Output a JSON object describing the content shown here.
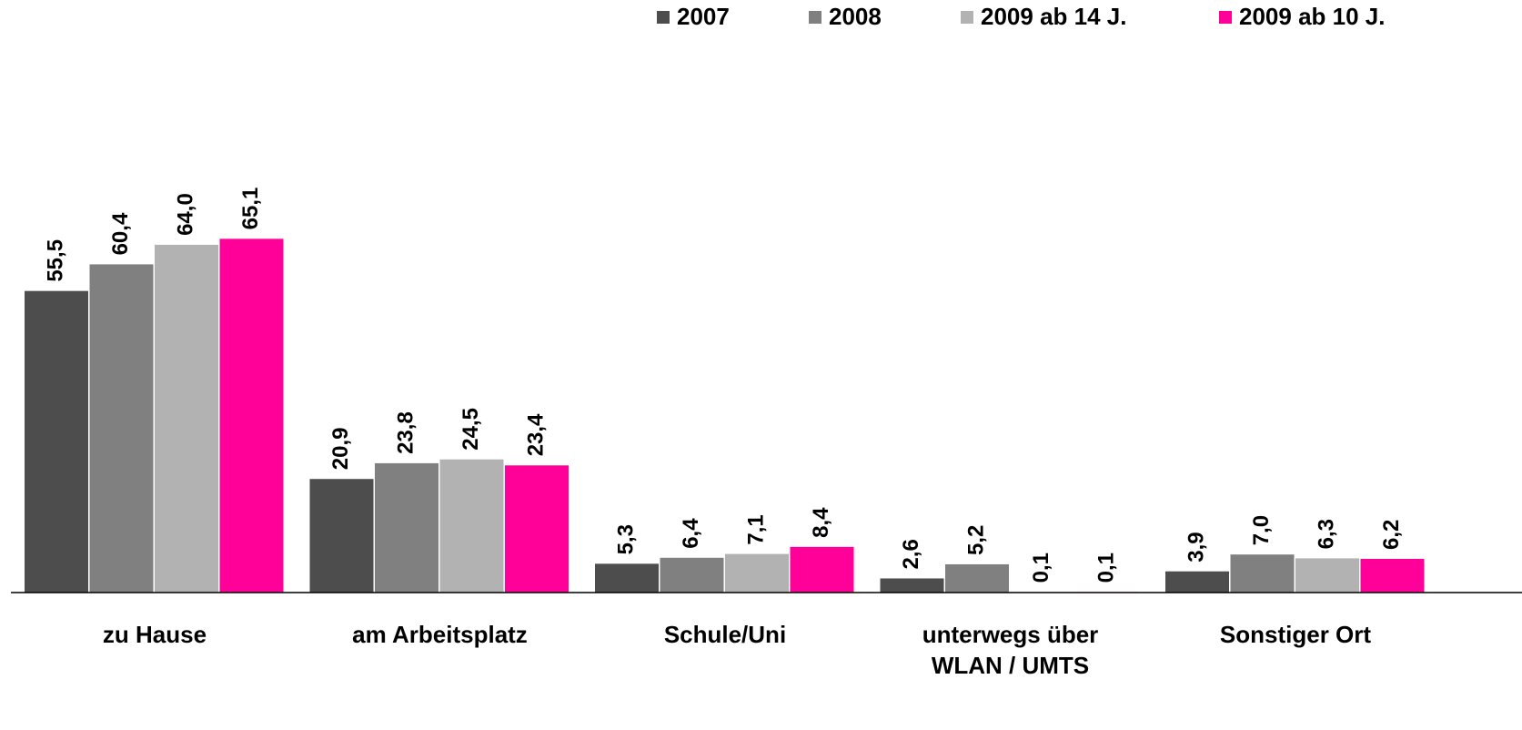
{
  "chart_data": {
    "type": "bar",
    "categories": [
      "zu Hause",
      "am Arbeitsplatz",
      "Schule/Uni",
      "unterwegs über\nWLAN / UMTS",
      "Sonstiger Ort"
    ],
    "series": [
      {
        "name": "2007",
        "color": "#4d4d4d",
        "values": [
          55.5,
          20.9,
          5.3,
          2.6,
          3.9
        ],
        "value_labels": [
          "55,5",
          "20,9",
          "5,3",
          "2,6",
          "3,9"
        ]
      },
      {
        "name": "2008",
        "color": "#808080",
        "values": [
          60.4,
          23.8,
          6.4,
          5.2,
          7.0
        ],
        "value_labels": [
          "60,4",
          "23,8",
          "6,4",
          "5,2",
          "7,0"
        ]
      },
      {
        "name": "2009 ab 14 J.",
        "color": "#b2b2b2",
        "values": [
          64.0,
          24.5,
          7.1,
          0.1,
          6.3
        ],
        "value_labels": [
          "64,0",
          "24,5",
          "7,1",
          "0,1",
          "6,3"
        ]
      },
      {
        "name": "2009 ab 10 J.",
        "color": "#ff0099",
        "values": [
          65.1,
          23.4,
          8.4,
          0.1,
          6.2
        ],
        "value_labels": [
          "65,1",
          "23,4",
          "8,4",
          "0,1",
          "6,2"
        ]
      }
    ],
    "legend": "top-right"
  }
}
